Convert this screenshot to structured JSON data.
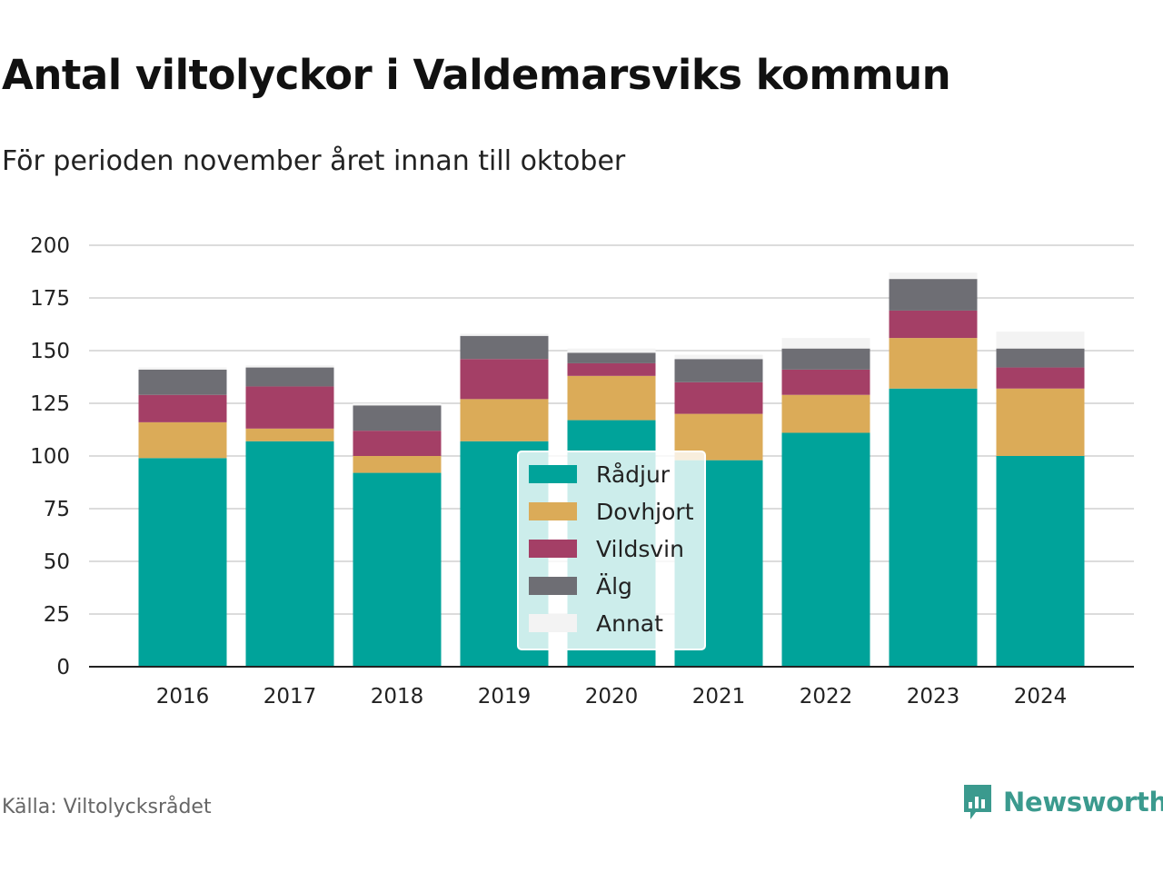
{
  "header": {
    "title": "Antal viltolyckor i Valdemarsviks kommun",
    "subtitle": "För perioden november året innan till oktober"
  },
  "footer": {
    "source": "Källa: Viltolycksrådet",
    "brand": "Newsworthy",
    "brand_icon": "bar-chart-speech-bubble-icon",
    "brand_color": "#3b9a8e"
  },
  "chart_data": {
    "type": "bar",
    "stacked": true,
    "categories": [
      "2016",
      "2017",
      "2018",
      "2019",
      "2020",
      "2021",
      "2022",
      "2023",
      "2024"
    ],
    "series": [
      {
        "name": "Rådjur",
        "color": "#00a39a",
        "values": [
          99,
          107,
          92,
          107,
          117,
          98,
          111,
          132,
          100
        ]
      },
      {
        "name": "Dovhjort",
        "color": "#dbab58",
        "values": [
          17,
          6,
          8,
          20,
          21,
          22,
          18,
          24,
          32
        ]
      },
      {
        "name": "Vildsvin",
        "color": "#a43f66",
        "values": [
          13,
          20,
          12,
          19,
          6,
          15,
          12,
          13,
          10
        ]
      },
      {
        "name": "Älg",
        "color": "#6e6e74",
        "values": [
          12,
          9,
          12,
          11,
          5,
          11,
          10,
          15,
          9
        ]
      },
      {
        "name": "Annat",
        "color": "#f3f3f3",
        "values": [
          1,
          1,
          1,
          1,
          2,
          2,
          5,
          3,
          8
        ]
      }
    ],
    "ylim": [
      0,
      200
    ],
    "yticks": [
      0,
      25,
      50,
      75,
      100,
      125,
      150,
      175,
      200
    ],
    "grid": true,
    "legend_position": "center"
  }
}
